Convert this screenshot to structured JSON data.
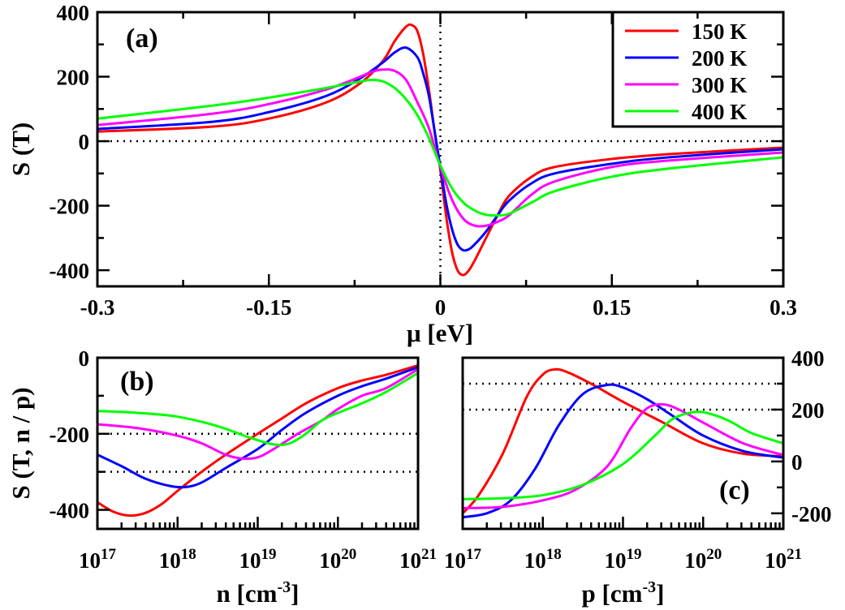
{
  "chart_data": [
    {
      "panel": "a",
      "type": "line",
      "panel_label": "(a)",
      "xlabel": "μ [eV]",
      "ylabel": "S (T)",
      "xlim": [
        -0.3,
        0.3
      ],
      "ylim": [
        -450,
        400
      ],
      "xticks": [
        -0.3,
        -0.15,
        0,
        0.15,
        0.3
      ],
      "xtick_labels": [
        "-0.3",
        "-0.15",
        "0",
        "0.15",
        "0.3"
      ],
      "yticks": [
        -400,
        -200,
        0,
        200,
        400
      ],
      "ytick_labels": [
        "-400",
        "-200",
        "0",
        "200",
        "400"
      ],
      "ref_h": [
        0
      ],
      "ref_v": [
        0
      ],
      "legend": [
        "150 K",
        "200 K",
        "300 K",
        "400 K"
      ],
      "series": [
        {
          "name": "150 K",
          "color": "#ff0000",
          "x": [
            -0.3,
            -0.2,
            -0.15,
            -0.1,
            -0.07,
            -0.05,
            -0.04,
            -0.03,
            -0.025,
            -0.02,
            -0.015,
            -0.01,
            -0.005,
            0,
            0.005,
            0.01,
            0.015,
            0.02,
            0.025,
            0.03,
            0.04,
            0.05,
            0.06,
            0.08,
            0.1,
            0.15,
            0.2,
            0.3
          ],
          "y": [
            30,
            45,
            70,
            120,
            180,
            250,
            310,
            355,
            360,
            340,
            270,
            160,
            30,
            -90,
            -230,
            -340,
            -400,
            -415,
            -400,
            -370,
            -300,
            -230,
            -170,
            -110,
            -80,
            -55,
            -40,
            -20
          ]
        },
        {
          "name": "200 K",
          "color": "#0000ff",
          "x": [
            -0.3,
            -0.2,
            -0.15,
            -0.1,
            -0.07,
            -0.05,
            -0.04,
            -0.03,
            -0.02,
            -0.015,
            -0.01,
            -0.005,
            0,
            0.005,
            0.01,
            0.015,
            0.02,
            0.025,
            0.03,
            0.04,
            0.05,
            0.06,
            0.08,
            0.1,
            0.15,
            0.2,
            0.3
          ],
          "y": [
            38,
            60,
            90,
            140,
            195,
            245,
            275,
            290,
            260,
            210,
            140,
            30,
            -80,
            -190,
            -270,
            -320,
            -338,
            -335,
            -320,
            -280,
            -230,
            -185,
            -130,
            -100,
            -70,
            -50,
            -25
          ]
        },
        {
          "name": "300 K",
          "color": "#ff00ff",
          "x": [
            -0.3,
            -0.2,
            -0.15,
            -0.1,
            -0.07,
            -0.06,
            -0.05,
            -0.04,
            -0.03,
            -0.02,
            -0.01,
            0,
            0.01,
            0.02,
            0.03,
            0.04,
            0.05,
            0.06,
            0.08,
            0.1,
            0.15,
            0.2,
            0.3
          ],
          "y": [
            50,
            85,
            115,
            160,
            200,
            215,
            222,
            218,
            190,
            120,
            40,
            -80,
            -180,
            -240,
            -262,
            -262,
            -250,
            -230,
            -165,
            -125,
            -80,
            -60,
            -35
          ]
        },
        {
          "name": "400 K",
          "color": "#00ff00",
          "x": [
            -0.3,
            -0.2,
            -0.15,
            -0.1,
            -0.07,
            -0.06,
            -0.05,
            -0.04,
            -0.03,
            -0.02,
            -0.01,
            0,
            0.01,
            0.02,
            0.03,
            0.04,
            0.05,
            0.06,
            0.08,
            0.1,
            0.15,
            0.2,
            0.3
          ],
          "y": [
            70,
            110,
            135,
            165,
            185,
            190,
            185,
            165,
            130,
            80,
            10,
            -75,
            -145,
            -190,
            -215,
            -228,
            -230,
            -225,
            -190,
            -155,
            -110,
            -85,
            -50
          ]
        }
      ]
    },
    {
      "panel": "b",
      "type": "line",
      "panel_label": "(b)",
      "xlabel": "n [cm-3]",
      "xlabel_main": "n [cm",
      "xlabel_sup": "-3",
      "xlabel_end": "]",
      "ylabel": "S (T, n / p)",
      "xscale": "log",
      "xlim": [
        17,
        21
      ],
      "ylim": [
        -450,
        0
      ],
      "xtick_base": "10",
      "xtick_exps": [
        "17",
        "18",
        "19",
        "20",
        "21"
      ],
      "yticks": [
        -400,
        -200,
        0
      ],
      "ytick_labels": [
        "-400",
        "-200",
        "0"
      ],
      "ref_h": [
        -200,
        -300
      ],
      "series": [
        {
          "name": "150 K",
          "color": "#ff0000",
          "logx": [
            17,
            17.2,
            17.4,
            17.6,
            17.8,
            18,
            18.3,
            18.6,
            19,
            19.3,
            19.6,
            20,
            20.3,
            20.6,
            21
          ],
          "y": [
            -380,
            -405,
            -415,
            -408,
            -385,
            -350,
            -300,
            -255,
            -200,
            -160,
            -120,
            -80,
            -60,
            -45,
            -20
          ]
        },
        {
          "name": "200 K",
          "color": "#0000ff",
          "logx": [
            17,
            17.3,
            17.6,
            17.9,
            18.1,
            18.3,
            18.6,
            19,
            19.3,
            19.6,
            20,
            20.3,
            20.6,
            21
          ],
          "y": [
            -255,
            -285,
            -318,
            -337,
            -340,
            -328,
            -290,
            -240,
            -190,
            -145,
            -100,
            -75,
            -55,
            -25
          ]
        },
        {
          "name": "300 K",
          "color": "#ff00ff",
          "logx": [
            17,
            17.5,
            18,
            18.3,
            18.6,
            18.8,
            19,
            19.2,
            19.5,
            19.8,
            20,
            20.3,
            20.6,
            21
          ],
          "y": [
            -175,
            -185,
            -205,
            -225,
            -255,
            -265,
            -262,
            -240,
            -200,
            -165,
            -135,
            -100,
            -80,
            -30
          ]
        },
        {
          "name": "400 K",
          "color": "#00ff00",
          "logx": [
            17,
            17.5,
            18,
            18.5,
            18.9,
            19.2,
            19.4,
            19.6,
            19.8,
            20,
            20.3,
            20.6,
            21
          ],
          "y": [
            -140,
            -145,
            -155,
            -180,
            -210,
            -228,
            -225,
            -200,
            -165,
            -145,
            -120,
            -90,
            -40
          ]
        }
      ]
    },
    {
      "panel": "c",
      "type": "line",
      "panel_label": "(c)",
      "xlabel": "p [cm-3]",
      "xlabel_main": "p [cm",
      "xlabel_sup": "-3",
      "xlabel_end": "]",
      "xscale": "log",
      "xlim": [
        17,
        21
      ],
      "ylim": [
        -260,
        400
      ],
      "xtick_base": "10",
      "xtick_exps": [
        "17",
        "18",
        "19",
        "20",
        "21"
      ],
      "yticks": [
        -200,
        0,
        200,
        400
      ],
      "ytick_labels": [
        "-200",
        "0",
        "200",
        "400"
      ],
      "ref_h": [
        300,
        200
      ],
      "series": [
        {
          "name": "150 K",
          "color": "#ff0000",
          "logx": [
            17,
            17.2,
            17.5,
            17.8,
            18,
            18.15,
            18.3,
            18.6,
            19,
            19.5,
            20,
            20.5,
            21
          ],
          "y": [
            -200,
            -130,
            30,
            250,
            335,
            355,
            345,
            300,
            230,
            150,
            70,
            30,
            20
          ]
        },
        {
          "name": "200 K",
          "color": "#0000ff",
          "logx": [
            17,
            17.3,
            17.6,
            17.9,
            18.2,
            18.5,
            18.8,
            19,
            19.3,
            19.6,
            20,
            20.5,
            21
          ],
          "y": [
            -215,
            -200,
            -150,
            -30,
            140,
            260,
            295,
            285,
            240,
            180,
            100,
            40,
            15
          ]
        },
        {
          "name": "300 K",
          "color": "#ff00ff",
          "logx": [
            17,
            17.5,
            18,
            18.4,
            18.8,
            19.1,
            19.3,
            19.5,
            19.7,
            20,
            20.5,
            21
          ],
          "y": [
            -180,
            -175,
            -150,
            -110,
            -20,
            130,
            205,
            220,
            200,
            150,
            70,
            25
          ]
        },
        {
          "name": "400 K",
          "color": "#00ff00",
          "logx": [
            17,
            17.5,
            18,
            18.5,
            19,
            19.4,
            19.6,
            19.8,
            20,
            20.3,
            20.6,
            21
          ],
          "y": [
            -145,
            -142,
            -130,
            -90,
            -10,
            100,
            160,
            185,
            190,
            160,
            110,
            70
          ]
        }
      ]
    }
  ]
}
